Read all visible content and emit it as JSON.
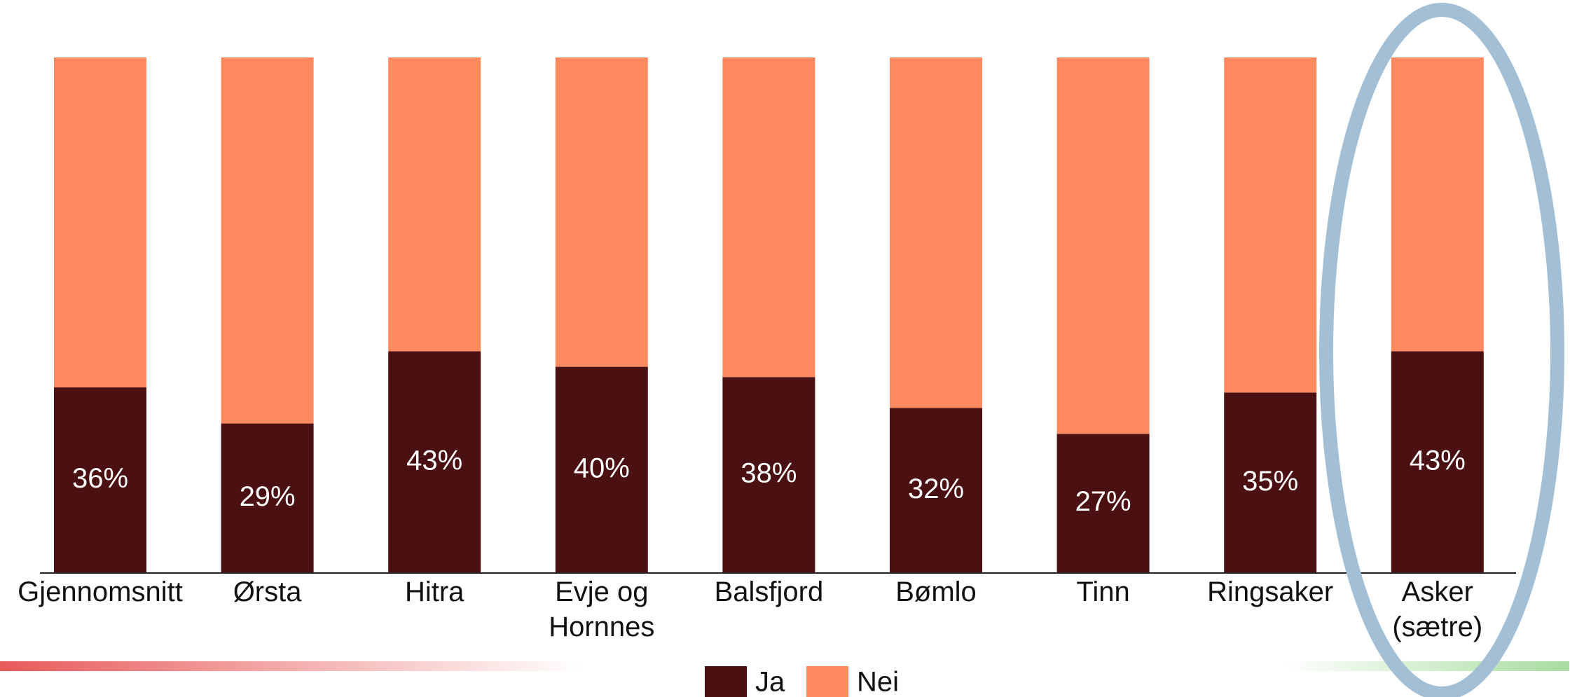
{
  "chart_data": {
    "type": "stacked_bar",
    "categories": [
      "Gjennomsnitt",
      "Ørsta",
      "Hitra",
      "Evje og\nHornnes",
      "Balsfjord",
      "Bømlo",
      "Tinn",
      "Ringsaker",
      "Asker\n(sætre)"
    ],
    "series": [
      {
        "name": "Ja",
        "color": "#4a1012",
        "values": [
          36,
          29,
          43,
          40,
          38,
          32,
          27,
          35,
          43
        ],
        "value_labels": [
          "36%",
          "29%",
          "43%",
          "40%",
          "38%",
          "32%",
          "27%",
          "35%",
          "43%"
        ]
      },
      {
        "name": "Nei",
        "color": "#ff8a5f",
        "values": [
          64,
          71,
          57,
          60,
          62,
          68,
          73,
          65,
          57
        ]
      }
    ],
    "ylim": [
      0,
      100
    ],
    "legend": "bottom"
  }
}
